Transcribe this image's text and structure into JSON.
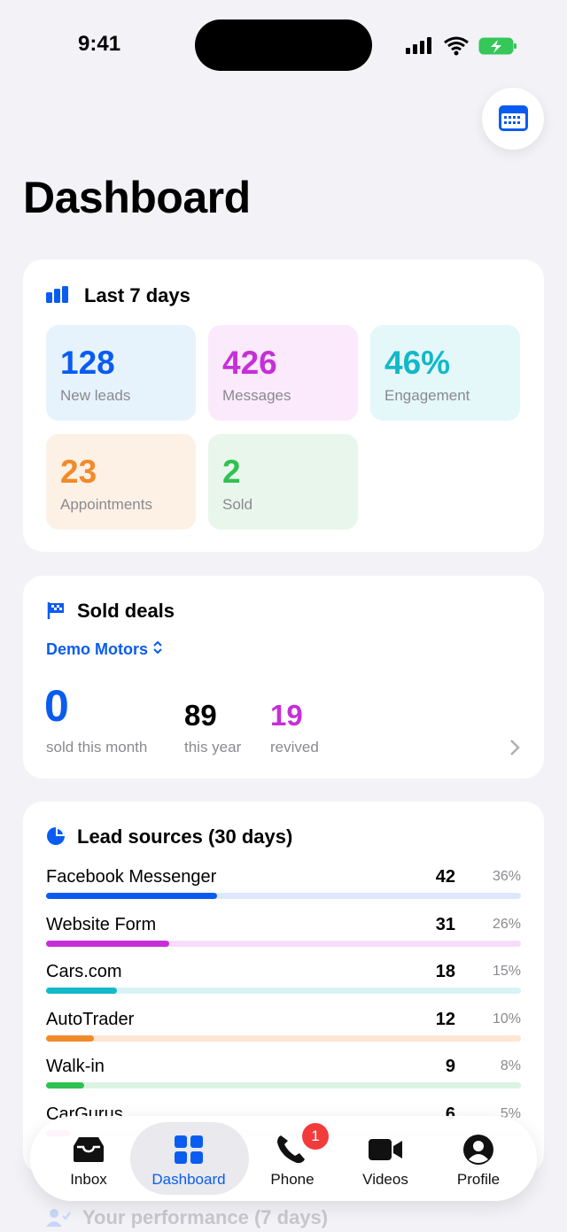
{
  "status_bar": {
    "time": "9:41"
  },
  "header": {
    "title": "Dashboard"
  },
  "last_7_days": {
    "title": "Last 7 days",
    "stats": [
      {
        "value": "128",
        "label": "New leads",
        "color": "#0a5cf0",
        "bg": "#e6f3fd"
      },
      {
        "value": "426",
        "label": "Messages",
        "color": "#c62fd8",
        "bg": "#fbeafc"
      },
      {
        "value": "46%",
        "label": "Engagement",
        "color": "#13b8c9",
        "bg": "#e4f7f9"
      },
      {
        "value": "23",
        "label": "Appointments",
        "color": "#f28a2a",
        "bg": "#fdf1e6"
      },
      {
        "value": "2",
        "label": "Sold",
        "color": "#2fc152",
        "bg": "#e9f6ec"
      }
    ]
  },
  "sold_deals": {
    "title": "Sold deals",
    "dealer": "Demo Motors",
    "month": {
      "value": "0",
      "label": "sold this month"
    },
    "year": {
      "value": "89",
      "label": "this year"
    },
    "revived": {
      "value": "19",
      "label": "revived"
    }
  },
  "lead_sources": {
    "title": "Lead sources (30 days)",
    "rows": [
      {
        "name": "Facebook Messenger",
        "count": "42",
        "share": {
          "value": 36,
          "label": "36%"
        },
        "color": "#0a5cf0",
        "track": "#dce8fd"
      },
      {
        "name": "Website Form",
        "count": "31",
        "share": {
          "value": 26,
          "label": "26%"
        },
        "color": "#c62fd8",
        "track": "#f8dcfb"
      },
      {
        "name": "Cars.com",
        "count": "18",
        "share": {
          "value": 15,
          "label": "15%"
        },
        "color": "#13b8c9",
        "track": "#d8f3f6"
      },
      {
        "name": "AutoTrader",
        "count": "12",
        "share": {
          "value": 10,
          "label": "10%"
        },
        "color": "#f28a2a",
        "track": "#fde6d2"
      },
      {
        "name": "Walk-in",
        "count": "9",
        "share": {
          "value": 8,
          "label": "8%"
        },
        "color": "#2fc152",
        "track": "#dcf2e2"
      },
      {
        "name": "CarGurus",
        "count": "6",
        "share": {
          "value": 5,
          "label": "5%"
        },
        "color": "#e94b9b",
        "track": "#fbdff0"
      }
    ]
  },
  "next_section": {
    "title": "Your performance (7 days)"
  },
  "tab_bar": {
    "tabs": [
      "Inbox",
      "Dashboard",
      "Phone",
      "Videos",
      "Profile"
    ],
    "phone_badge": "1"
  }
}
